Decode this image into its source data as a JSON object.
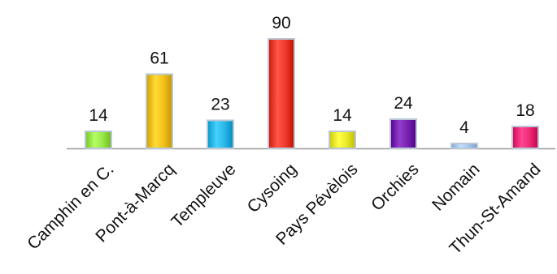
{
  "chart_data": {
    "type": "bar",
    "categories": [
      "Camphin en C.",
      "Pont-à-Marcq",
      "Templeuve",
      "Cysoing",
      "Pays Pévèlois",
      "Orchies",
      "Nomain",
      "Thun-St-Amand"
    ],
    "values": [
      14,
      61,
      23,
      90,
      14,
      24,
      4,
      18
    ],
    "colors": [
      "#9be84a",
      "#f4c21b",
      "#2bb8e8",
      "#ee3b2e",
      "#ecea2b",
      "#7a24b4",
      "#a7c7ee",
      "#ef2c78"
    ],
    "title": "",
    "xlabel": "",
    "ylabel": "",
    "ylim": [
      0,
      90
    ],
    "grid": false,
    "legend": "none"
  }
}
